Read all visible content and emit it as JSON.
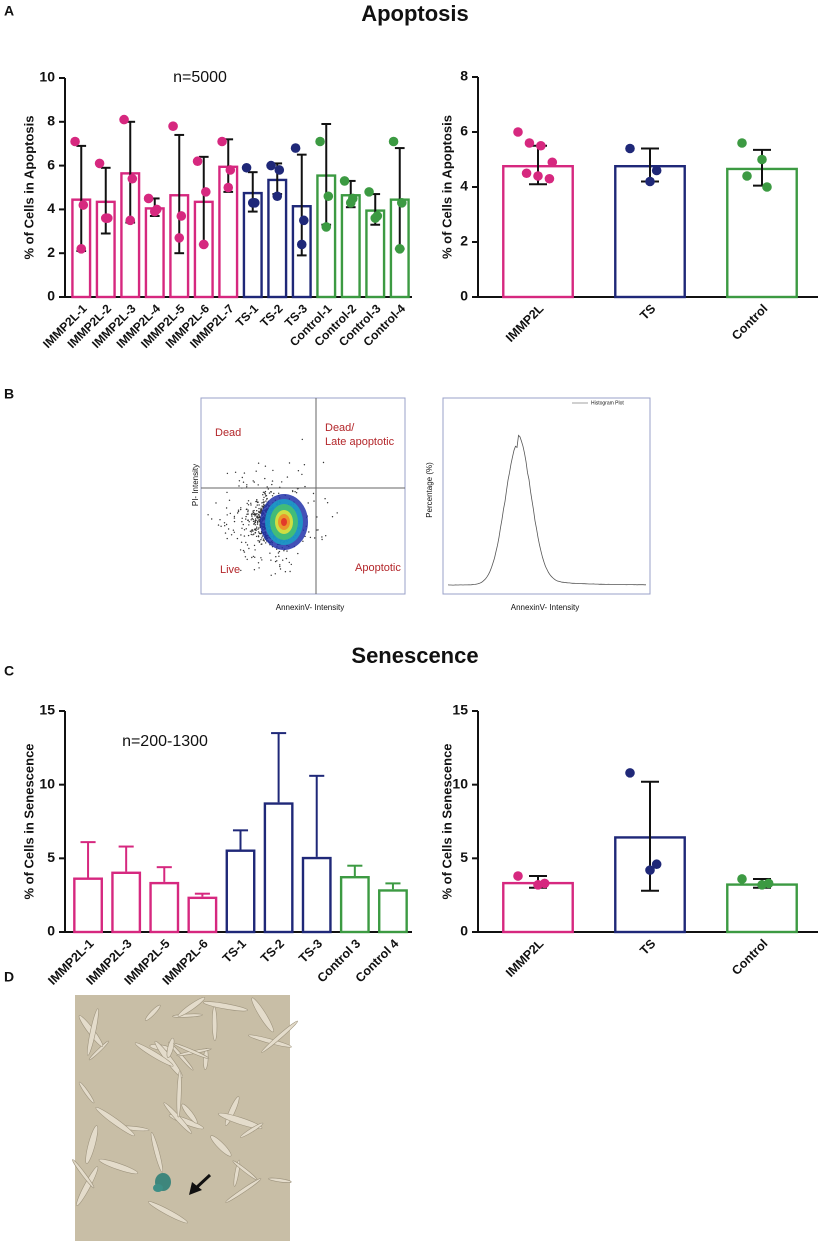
{
  "panels": {
    "a": "A",
    "b": "B",
    "c": "C",
    "d": "D"
  },
  "titles": {
    "apoptosis": "Apoptosis",
    "senescence": "Senescence"
  },
  "flow": {
    "dead": "Dead",
    "dead_late_1": "Dead/",
    "dead_late_2": "Late apoptotic",
    "live": "Live",
    "apoptotic": "Apoptotic",
    "scatter_ylabel": "PI- Intensity",
    "scatter_xlabel": "AnnexinV- Intensity",
    "hist_ylabel": "Percentage (%)",
    "hist_xlabel": "AnnexinV- Intensity",
    "hist_legend": "Histogram Plot"
  },
  "chart_data": [
    {
      "type": "bar",
      "ylabel": "% of Cells in Apoptosis",
      "annotation": "n=5000",
      "error_bars": "both",
      "categories": [
        "IMMP2L-1",
        "IMMP2L-2",
        "IMMP2L-3",
        "IMMP2L-4",
        "IMMP2L-5",
        "IMMP2L-6",
        "IMMP2L-7",
        "TS-1",
        "TS-2",
        "TS-3",
        "Control-1",
        "Control-2",
        "Control-3",
        "Control-4"
      ],
      "values": [
        4.5,
        4.4,
        5.7,
        4.1,
        4.7,
        4.4,
        6.0,
        4.8,
        5.4,
        4.2,
        5.6,
        4.7,
        4.0,
        4.5
      ],
      "errors": [
        2.4,
        1.5,
        2.3,
        0.4,
        2.7,
        2.0,
        1.2,
        0.9,
        0.7,
        2.3,
        2.3,
        0.6,
        0.7,
        2.3
      ],
      "points": [
        [
          7.1,
          4.2,
          2.2
        ],
        [
          6.1,
          3.6,
          3.6
        ],
        [
          8.1,
          5.4,
          3.5
        ],
        [
          4.5,
          4.0,
          3.9
        ],
        [
          7.8,
          3.7,
          2.7
        ],
        [
          6.2,
          4.8,
          2.4
        ],
        [
          7.1,
          5.8,
          5.0
        ],
        [
          5.9,
          4.3,
          4.3
        ],
        [
          6.0,
          5.8,
          4.6
        ],
        [
          6.8,
          3.5,
          2.4
        ],
        [
          7.1,
          4.6,
          3.2
        ],
        [
          5.3,
          4.5,
          4.3
        ],
        [
          4.8,
          3.7,
          3.6
        ],
        [
          7.1,
          4.3,
          2.2
        ]
      ],
      "colors": [
        "#d6287f",
        "#d6287f",
        "#d6287f",
        "#d6287f",
        "#d6287f",
        "#d6287f",
        "#d6287f",
        "#1f2878",
        "#1f2878",
        "#1f2878",
        "#3c9a42",
        "#3c9a42",
        "#3c9a42",
        "#3c9a42"
      ],
      "ylim": [
        0,
        10
      ],
      "yticks": [
        0,
        2,
        4,
        6,
        8,
        10
      ]
    },
    {
      "type": "bar",
      "ylabel": "% of Cells in Apoptosis",
      "error_bars": "both",
      "categories": [
        "IMMP2L",
        "TS",
        "Control"
      ],
      "values": [
        4.8,
        4.8,
        4.7
      ],
      "errors": [
        0.7,
        0.6,
        0.65
      ],
      "points": [
        [
          6.0,
          5.6,
          5.5,
          4.9,
          4.5,
          4.4,
          4.3
        ],
        [
          5.4,
          4.6,
          4.2
        ],
        [
          5.6,
          5.0,
          4.4,
          4.0
        ]
      ],
      "colors": [
        "#d6287f",
        "#1f2878",
        "#3c9a42"
      ],
      "ylim": [
        0,
        8
      ],
      "yticks": [
        0,
        2,
        4,
        6,
        8
      ]
    },
    {
      "type": "bar",
      "ylabel": "% of Cells in Senescence",
      "annotation": "n=200-1300",
      "error_bars": "upper",
      "categories": [
        "IMMP2L-1",
        "IMMP2L-3",
        "IMMP2L-5",
        "IMMP2L-6",
        "TS-1",
        "TS-2",
        "TS-3",
        "Control 3",
        "Control 4"
      ],
      "values": [
        3.7,
        4.1,
        3.4,
        2.4,
        5.6,
        8.8,
        5.1,
        3.8,
        2.9
      ],
      "errors": [
        2.4,
        1.7,
        1.0,
        0.2,
        1.3,
        4.7,
        5.5,
        0.7,
        0.4
      ],
      "colors": [
        "#d6287f",
        "#d6287f",
        "#d6287f",
        "#d6287f",
        "#1f2878",
        "#1f2878",
        "#1f2878",
        "#3c9a42",
        "#3c9a42"
      ],
      "ylim": [
        0,
        15
      ],
      "yticks": [
        0,
        5,
        10,
        15
      ]
    },
    {
      "type": "bar",
      "ylabel": "% of Cells in Senescence",
      "error_bars": "both",
      "categories": [
        "IMMP2L",
        "TS",
        "Control"
      ],
      "values": [
        3.4,
        6.5,
        3.3
      ],
      "errors": [
        0.4,
        3.7,
        0.3
      ],
      "points": [
        [
          3.8,
          3.3,
          3.2
        ],
        [
          10.8,
          4.6,
          4.2
        ],
        [
          3.6,
          3.3,
          3.2
        ]
      ],
      "colors": [
        "#d6287f",
        "#1f2878",
        "#3c9a42"
      ],
      "ylim": [
        0,
        15
      ],
      "yticks": [
        0,
        5,
        10,
        15
      ]
    }
  ]
}
